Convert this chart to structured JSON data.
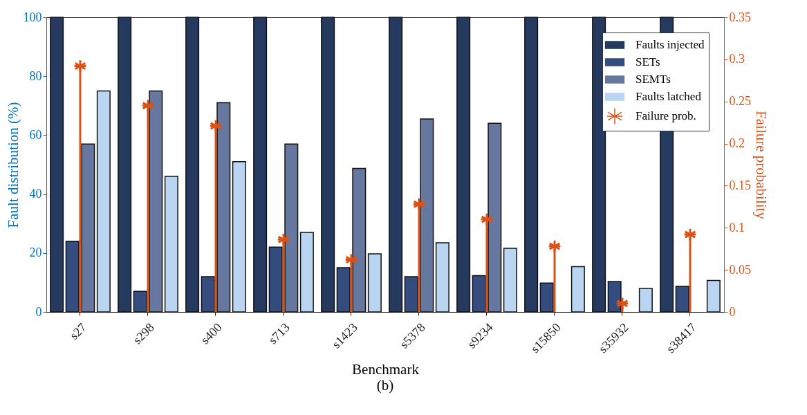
{
  "chart_data": {
    "type": "bar",
    "xlabel": "Benchmark",
    "ylabel": "Fault distribution (%)",
    "y2label": "Failure probability",
    "categories": [
      "s27",
      "s298",
      "s400",
      "s713",
      "s1423",
      "s5378",
      "s9234",
      "s15850",
      "s35932",
      "s38417"
    ],
    "series": [
      {
        "name": "Faults injected",
        "color": "#263a60",
        "values": [
          100,
          100,
          100,
          100,
          100,
          100,
          100,
          100,
          100,
          100
        ]
      },
      {
        "name": "SETs",
        "color": "#344d7e",
        "values": [
          24,
          7,
          12,
          22,
          15,
          12,
          12.3,
          9.8,
          10.3,
          8.7
        ]
      },
      {
        "name": "SEMTs",
        "color": "#6677a0",
        "values": [
          57,
          75,
          71,
          57,
          48.7,
          65.5,
          64,
          null,
          null,
          null
        ]
      },
      {
        "name": "Faults latched",
        "color": "#b9d5f2",
        "values": [
          75,
          46,
          51,
          27,
          19.7,
          23.5,
          21.6,
          15.4,
          8,
          10.7
        ]
      },
      {
        "name": "Failure prob.",
        "type": "lollipop",
        "axis": "y2",
        "color": "#d95319",
        "marker": "cross",
        "values": [
          0.292,
          0.245,
          0.221,
          0.086,
          0.062,
          0.128,
          0.11,
          0.078,
          0.01,
          0.092
        ]
      }
    ],
    "ylim": [
      0,
      100
    ],
    "yticks": [
      0,
      20,
      40,
      60,
      80,
      100
    ],
    "y2lim": [
      0,
      0.35
    ],
    "y2ticks": [
      0,
      0.05,
      0.1,
      0.15,
      0.2,
      0.25,
      0.3,
      0.35
    ],
    "grid": false,
    "legend": "top right",
    "annotations": [
      "(b)"
    ]
  }
}
